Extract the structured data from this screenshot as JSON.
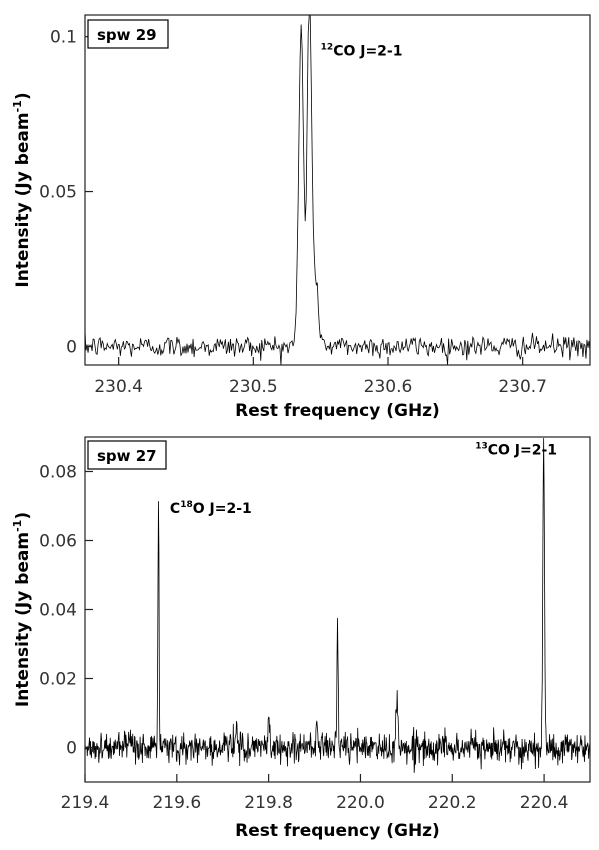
{
  "chart_data": [
    {
      "type": "line",
      "panel_label": "spw 29",
      "xlabel": "Rest frequency (GHz)",
      "ylabel_main": "Intensity (Jy beam",
      "ylabel_sup": "-1",
      "ylabel_close": ")",
      "xlim": [
        230.375,
        230.75
      ],
      "ylim": [
        -0.006,
        0.107
      ],
      "x_ticks": [
        230.4,
        230.5,
        230.6,
        230.7
      ],
      "x_tick_labels": [
        "230.4",
        "230.5",
        "230.6",
        "230.7"
      ],
      "y_ticks": [
        0,
        0.05,
        0.1
      ],
      "y_tick_labels": [
        "0",
        "0.05",
        "0.1"
      ],
      "noise_rms": 0.0018,
      "series": [
        {
          "lines": [
            {
              "center": 230.5355,
              "height": 0.102,
              "width": 0.0018
            },
            {
              "center": 230.5415,
              "height": 0.1,
              "width": 0.0015
            },
            {
              "center": 230.5445,
              "height": 0.027,
              "width": 0.003
            }
          ]
        }
      ],
      "annotations": [
        {
          "sup": "12",
          "text": "CO J=2-1",
          "x": 230.55,
          "y": 0.094
        }
      ]
    },
    {
      "type": "line",
      "panel_label": "spw 27",
      "xlabel": "Rest frequency (GHz)",
      "ylabel_main": "Intensity (Jy beam",
      "ylabel_sup": "-1",
      "ylabel_close": ")",
      "xlim": [
        219.4,
        220.5
      ],
      "ylim": [
        -0.01,
        0.09
      ],
      "x_ticks": [
        219.4,
        219.6,
        219.8,
        220.0,
        220.2,
        220.4
      ],
      "x_tick_labels": [
        "219.4",
        "219.6",
        "219.8",
        "220.0",
        "220.2",
        "220.4"
      ],
      "y_ticks": [
        0,
        0.02,
        0.04,
        0.06,
        0.08
      ],
      "y_tick_labels": [
        "0",
        "0.02",
        "0.04",
        "0.06",
        "0.08"
      ],
      "noise_rms": 0.0022,
      "series": [
        {
          "lines": [
            {
              "center": 219.56,
              "height": 0.072,
              "width": 0.0012
            },
            {
              "center": 219.73,
              "height": 0.006,
              "width": 0.002
            },
            {
              "center": 219.8,
              "height": 0.011,
              "width": 0.0015
            },
            {
              "center": 219.905,
              "height": 0.008,
              "width": 0.0015
            },
            {
              "center": 219.95,
              "height": 0.037,
              "width": 0.0014
            },
            {
              "center": 220.08,
              "height": 0.013,
              "width": 0.0018
            },
            {
              "center": 220.399,
              "height": 0.088,
              "width": 0.0018
            }
          ]
        }
      ],
      "annotations": [
        {
          "prefix": "C",
          "sup": "18",
          "text": "O J=2-1",
          "x": 219.585,
          "y": 0.068
        },
        {
          "sup": "13",
          "text": "CO J=2-1",
          "x": 220.25,
          "y": 0.085
        }
      ]
    }
  ]
}
